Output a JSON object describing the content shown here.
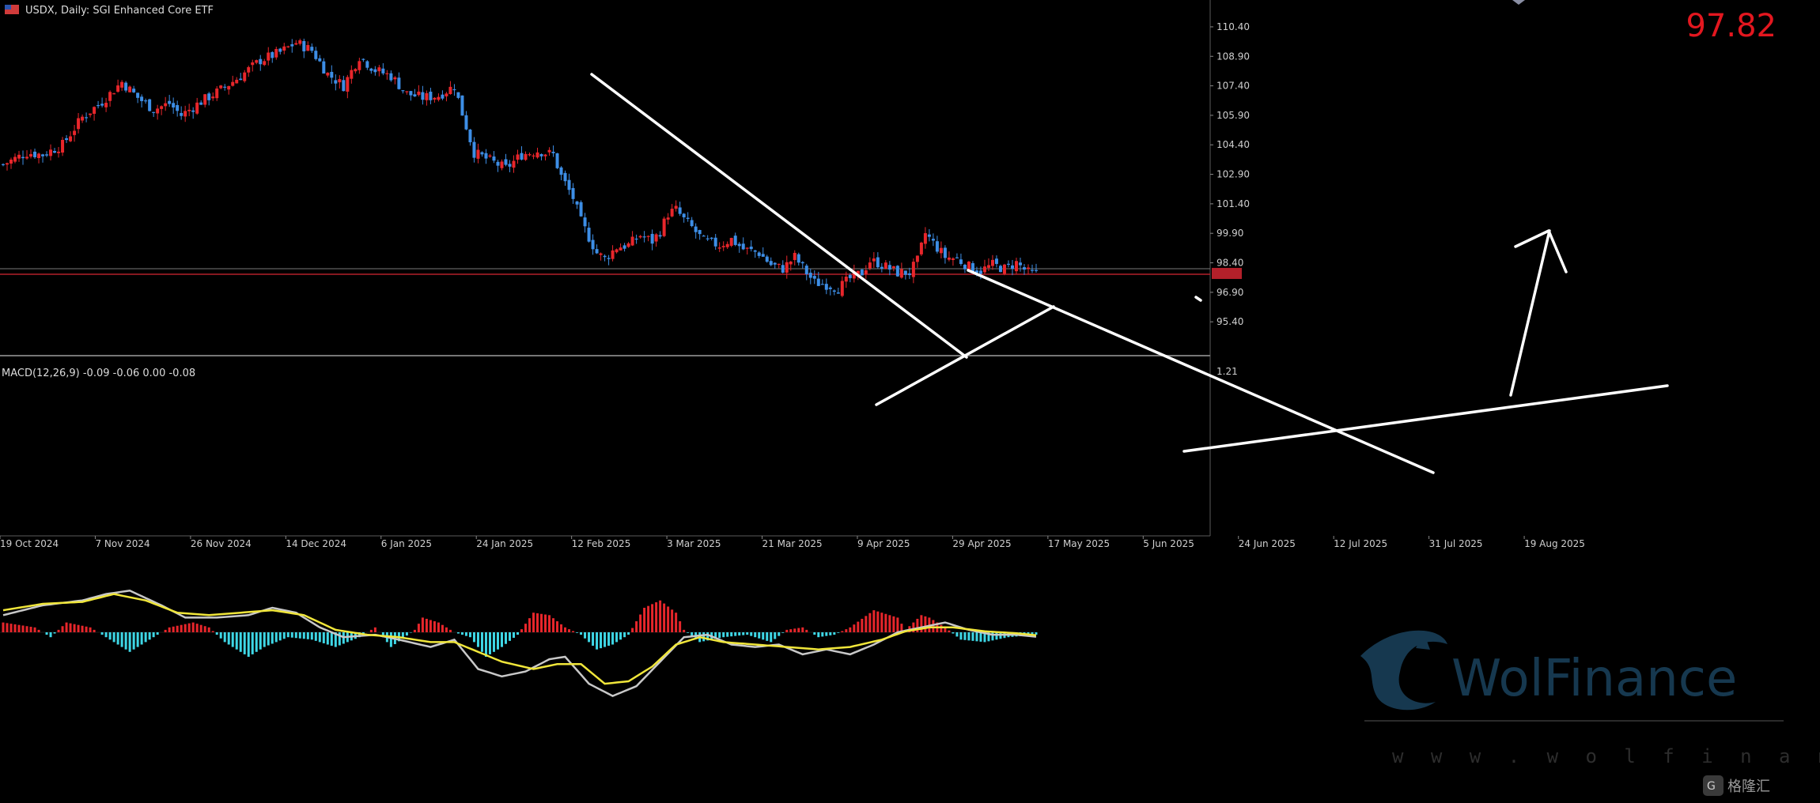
{
  "header": {
    "symbol_text": "USDX, Daily:  SGI Enhanced Core ETF"
  },
  "price_label": "97.82",
  "brand": {
    "watermark": "WolFinance",
    "url": "w w w . w o l f i n a n c e . c o m",
    "corner": "格隆汇"
  },
  "colors": {
    "bull": "#e8262b",
    "bear": "#3d8ee6",
    "hist_pos": "#e8262b",
    "hist_neg": "#3ed7e6",
    "macd_line": "#c8c8c8",
    "signal_line": "#f0e63a",
    "trendline": "#ffffff",
    "price_line": "#b3202a"
  },
  "chart_data": [
    {
      "type": "candlestick",
      "title": "USDX, Daily:  SGI Enhanced Core ETF",
      "x_labels": [
        "19 Oct 2024",
        "7 Nov 2024",
        "26 Nov 2024",
        "14 Dec 2024",
        "6 Jan 2025",
        "24 Jan 2025",
        "12 Feb 2025",
        "3 Mar 2025",
        "21 Mar 2025",
        "9 Apr 2025",
        "29 Apr 2025",
        "17 May 2025",
        "5 Jun 2025",
        "24 Jun 2025",
        "12 Jul 2025",
        "31 Jul 2025",
        "19 Aug 2025"
      ],
      "y_ticks": [
        "110.40",
        "108.90",
        "107.40",
        "105.90",
        "104.40",
        "102.90",
        "101.40",
        "99.90",
        "98.40",
        "96.90",
        "95.40"
      ],
      "ylim": [
        94.0,
        110.8
      ],
      "close_path": [
        [
          0,
          103.4
        ],
        [
          6,
          104.0
        ],
        [
          10,
          103.9
        ],
        [
          15,
          104.4
        ],
        [
          20,
          105.8
        ],
        [
          25,
          106.6
        ],
        [
          30,
          107.6
        ],
        [
          34,
          106.8
        ],
        [
          38,
          106.2
        ],
        [
          42,
          106.5
        ],
        [
          45,
          105.9
        ],
        [
          50,
          106.6
        ],
        [
          55,
          107.2
        ],
        [
          60,
          107.9
        ],
        [
          65,
          108.7
        ],
        [
          70,
          109.1
        ],
        [
          74,
          109.6
        ],
        [
          78,
          109.2
        ],
        [
          82,
          108.0
        ],
        [
          86,
          107.4
        ],
        [
          90,
          108.9
        ],
        [
          94,
          108.2
        ],
        [
          98,
          107.9
        ],
        [
          102,
          107.0
        ],
        [
          106,
          106.8
        ],
        [
          110,
          106.9
        ],
        [
          114,
          107.4
        ],
        [
          116,
          106.0
        ],
        [
          119,
          104.0
        ],
        [
          123,
          103.6
        ],
        [
          127,
          103.2
        ],
        [
          131,
          103.9
        ],
        [
          135,
          104.1
        ],
        [
          139,
          103.9
        ],
        [
          141,
          102.8
        ],
        [
          144,
          101.7
        ],
        [
          146,
          100.5
        ],
        [
          148,
          99.7
        ],
        [
          150,
          98.9
        ],
        [
          152,
          98.6
        ],
        [
          155,
          99.2
        ],
        [
          158,
          99.3
        ],
        [
          161,
          99.8
        ],
        [
          164,
          99.5
        ],
        [
          166,
          100.0
        ],
        [
          168,
          100.9
        ],
        [
          170,
          101.1
        ],
        [
          172,
          100.6
        ],
        [
          174,
          100.2
        ],
        [
          177,
          99.5
        ],
        [
          181,
          99.3
        ],
        [
          184,
          99.6
        ],
        [
          187,
          99.1
        ],
        [
          191,
          98.9
        ],
        [
          194,
          98.3
        ],
        [
          197,
          98.1
        ],
        [
          200,
          98.7
        ],
        [
          203,
          97.9
        ],
        [
          205,
          97.4
        ],
        [
          208,
          97.3
        ],
        [
          211,
          97.1
        ],
        [
          214,
          97.6
        ],
        [
          217,
          97.9
        ],
        [
          219,
          98.5
        ],
        [
          221,
          98.4
        ],
        [
          223,
          98.2
        ],
        [
          226,
          97.9
        ],
        [
          229,
          97.9
        ],
        [
          231,
          98.5
        ],
        [
          233,
          99.9
        ],
        [
          235,
          99.4
        ],
        [
          238,
          98.7
        ],
        [
          241,
          98.6
        ],
        [
          244,
          98.2
        ],
        [
          247,
          98.0
        ],
        [
          250,
          98.3
        ],
        [
          253,
          98.1
        ],
        [
          256,
          98.4
        ],
        [
          259,
          97.9
        ],
        [
          261,
          97.82
        ]
      ],
      "resistance_lines": [
        "falling trendline 1",
        "falling trendline 2",
        "rising support line",
        "projected breakout arrow"
      ]
    },
    {
      "type": "line",
      "title": "MACD(12,26,9) -0.09 -0.06 0.00 -0.08",
      "y_ticks": [
        "1.21"
      ],
      "series": [
        {
          "name": "MACD",
          "values_path": [
            [
              0,
              0.35
            ],
            [
              10,
              0.55
            ],
            [
              20,
              0.65
            ],
            [
              26,
              0.78
            ],
            [
              32,
              0.85
            ],
            [
              40,
              0.55
            ],
            [
              46,
              0.3
            ],
            [
              54,
              0.3
            ],
            [
              62,
              0.35
            ],
            [
              68,
              0.5
            ],
            [
              74,
              0.4
            ],
            [
              80,
              0.1
            ],
            [
              86,
              -0.1
            ],
            [
              94,
              -0.05
            ],
            [
              100,
              -0.15
            ],
            [
              108,
              -0.3
            ],
            [
              114,
              -0.15
            ],
            [
              120,
              -0.75
            ],
            [
              126,
              -0.9
            ],
            [
              132,
              -0.8
            ],
            [
              138,
              -0.55
            ],
            [
              142,
              -0.5
            ],
            [
              148,
              -1.05
            ],
            [
              154,
              -1.3
            ],
            [
              160,
              -1.1
            ],
            [
              166,
              -0.6
            ],
            [
              172,
              -0.1
            ],
            [
              178,
              -0.05
            ],
            [
              184,
              -0.25
            ],
            [
              190,
              -0.3
            ],
            [
              196,
              -0.25
            ],
            [
              202,
              -0.45
            ],
            [
              208,
              -0.35
            ],
            [
              214,
              -0.45
            ],
            [
              220,
              -0.25
            ],
            [
              226,
              0.0
            ],
            [
              232,
              0.1
            ],
            [
              238,
              0.2
            ],
            [
              244,
              0.05
            ],
            [
              250,
              -0.05
            ],
            [
              256,
              -0.05
            ],
            [
              261,
              -0.09
            ]
          ]
        },
        {
          "name": "Signal",
          "values_path": [
            [
              0,
              0.45
            ],
            [
              10,
              0.58
            ],
            [
              20,
              0.62
            ],
            [
              28,
              0.78
            ],
            [
              36,
              0.65
            ],
            [
              44,
              0.4
            ],
            [
              52,
              0.35
            ],
            [
              60,
              0.4
            ],
            [
              68,
              0.45
            ],
            [
              76,
              0.35
            ],
            [
              84,
              0.05
            ],
            [
              92,
              -0.05
            ],
            [
              100,
              -0.1
            ],
            [
              108,
              -0.2
            ],
            [
              114,
              -0.2
            ],
            [
              120,
              -0.4
            ],
            [
              126,
              -0.6
            ],
            [
              134,
              -0.75
            ],
            [
              140,
              -0.65
            ],
            [
              146,
              -0.65
            ],
            [
              152,
              -1.05
            ],
            [
              158,
              -1.0
            ],
            [
              164,
              -0.7
            ],
            [
              170,
              -0.25
            ],
            [
              176,
              -0.1
            ],
            [
              182,
              -0.2
            ],
            [
              190,
              -0.25
            ],
            [
              198,
              -0.3
            ],
            [
              206,
              -0.35
            ],
            [
              214,
              -0.3
            ],
            [
              222,
              -0.15
            ],
            [
              228,
              0.02
            ],
            [
              234,
              0.1
            ],
            [
              240,
              0.1
            ],
            [
              248,
              0.02
            ],
            [
              256,
              -0.02
            ],
            [
              261,
              -0.06
            ]
          ]
        }
      ],
      "histogram_path": [
        [
          0,
          0.2
        ],
        [
          8,
          0.1
        ],
        [
          12,
          -0.1
        ],
        [
          16,
          0.2
        ],
        [
          22,
          0.1
        ],
        [
          28,
          -0.2
        ],
        [
          32,
          -0.4
        ],
        [
          36,
          -0.2
        ],
        [
          42,
          0.1
        ],
        [
          48,
          0.2
        ],
        [
          52,
          0.1
        ],
        [
          56,
          -0.2
        ],
        [
          62,
          -0.5
        ],
        [
          66,
          -0.3
        ],
        [
          72,
          -0.1
        ],
        [
          78,
          -0.15
        ],
        [
          84,
          -0.3
        ],
        [
          90,
          -0.1
        ],
        [
          94,
          0.1
        ],
        [
          98,
          -0.3
        ],
        [
          104,
          0.05
        ],
        [
          106,
          0.3
        ],
        [
          110,
          0.2
        ],
        [
          114,
          0.0
        ],
        [
          118,
          -0.1
        ],
        [
          122,
          -0.5
        ],
        [
          126,
          -0.3
        ],
        [
          130,
          -0.05
        ],
        [
          134,
          0.4
        ],
        [
          138,
          0.35
        ],
        [
          142,
          0.1
        ],
        [
          146,
          -0.05
        ],
        [
          150,
          -0.35
        ],
        [
          154,
          -0.25
        ],
        [
          158,
          -0.05
        ],
        [
          162,
          0.5
        ],
        [
          166,
          0.65
        ],
        [
          170,
          0.4
        ],
        [
          172,
          0.05
        ],
        [
          176,
          -0.2
        ],
        [
          182,
          -0.1
        ],
        [
          188,
          -0.05
        ],
        [
          194,
          -0.2
        ],
        [
          198,
          0.05
        ],
        [
          202,
          0.1
        ],
        [
          206,
          -0.1
        ],
        [
          210,
          -0.05
        ],
        [
          214,
          0.1
        ],
        [
          220,
          0.45
        ],
        [
          226,
          0.3
        ],
        [
          228,
          0.05
        ],
        [
          232,
          0.35
        ],
        [
          234,
          0.3
        ],
        [
          238,
          0.1
        ],
        [
          242,
          -0.15
        ],
        [
          248,
          -0.2
        ],
        [
          254,
          -0.1
        ],
        [
          261,
          -0.05
        ]
      ]
    }
  ]
}
